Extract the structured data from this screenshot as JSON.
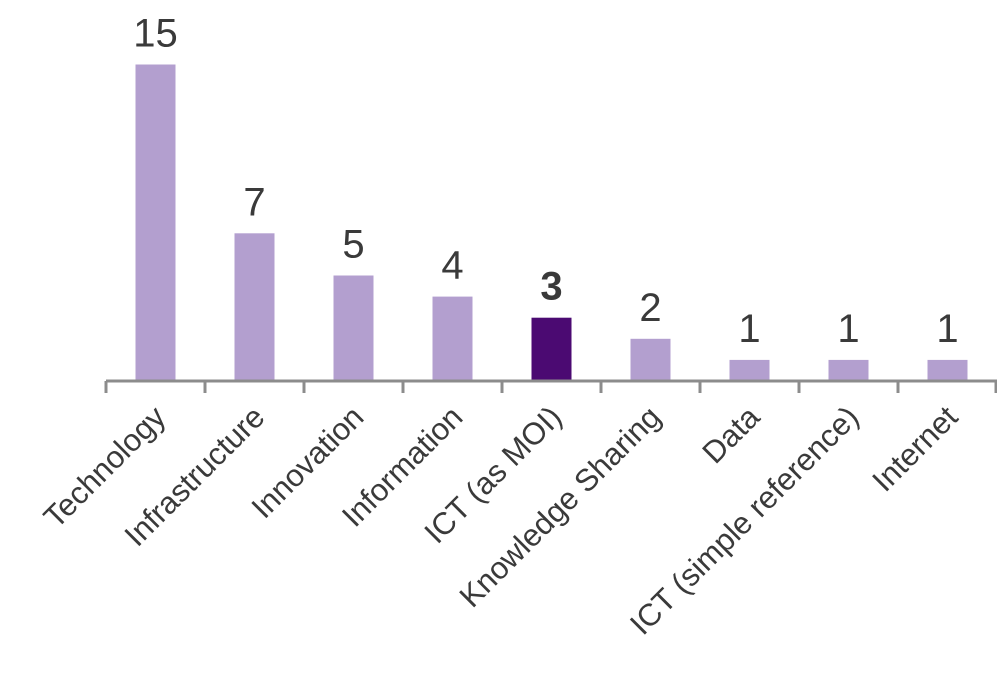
{
  "chart_data": {
    "type": "bar",
    "title": "",
    "xlabel": "",
    "ylabel": "",
    "categories": [
      "Technology",
      "Infrastructure",
      "Innovation",
      "Information",
      "ICT (as MOI)",
      "Knowledge Sharing",
      "Data",
      "ICT (simple reference)",
      "Internet"
    ],
    "values": [
      15,
      7,
      5,
      4,
      3,
      2,
      1,
      1,
      1
    ],
    "data_labels": [
      "15",
      "7",
      "5",
      "4",
      "3",
      "2",
      "1",
      "1",
      "1"
    ],
    "highlight_index": 4,
    "ylim": [
      0,
      15
    ],
    "grid": false,
    "legend": "none",
    "colors": {
      "bar": "#b39fcf",
      "highlight": "#4b0a72",
      "axis": "#8c8c8c",
      "text": "#3a3a3a"
    }
  }
}
